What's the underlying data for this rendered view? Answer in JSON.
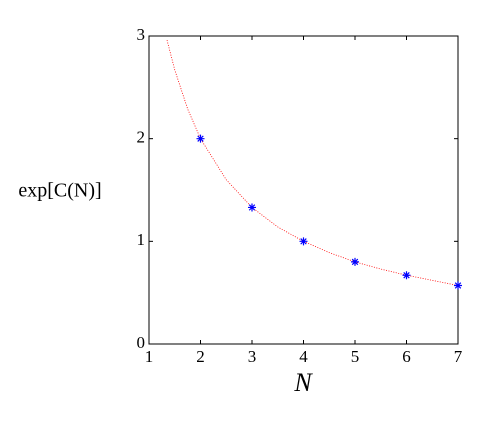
{
  "chart_data": {
    "type": "scatter",
    "xlabel": "N",
    "ylabel": "exp[C(N)]",
    "xlim": [
      1,
      7
    ],
    "ylim": [
      0,
      3
    ],
    "xticks": [
      1,
      2,
      3,
      4,
      5,
      6,
      7
    ],
    "yticks": [
      0,
      1,
      2,
      3
    ],
    "series": [
      {
        "color": "#ff0000",
        "line": "dotted",
        "x": [
          1.35,
          1.5,
          1.75,
          2,
          2.5,
          3,
          3.5,
          4,
          4.5,
          5,
          5.5,
          6,
          6.5,
          7
        ],
        "values": [
          2.96,
          2.67,
          2.29,
          2,
          1.6,
          1.33,
          1.14,
          1,
          0.89,
          0.8,
          0.73,
          0.67,
          0.62,
          0.57
        ]
      },
      {
        "color": "#0000ff",
        "marker": "*",
        "x": [
          2,
          3,
          4,
          5,
          6,
          7
        ],
        "values": [
          2,
          1.33,
          1,
          0.8,
          0.67,
          0.57
        ]
      }
    ]
  }
}
